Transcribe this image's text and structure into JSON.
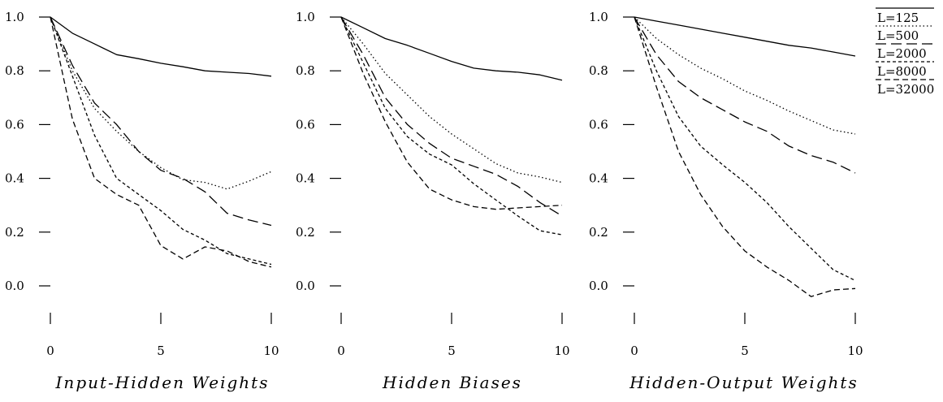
{
  "chart_data": [
    {
      "type": "line",
      "title": "Input-Hidden Weights",
      "xlabel": "",
      "ylabel": "",
      "xlim": [
        0,
        10
      ],
      "ylim": [
        0.0,
        1.0
      ],
      "xticks": [
        "0",
        "5",
        "10"
      ],
      "yticks": [
        "0.0",
        "0.2",
        "0.4",
        "0.6",
        "0.8",
        "1.0"
      ],
      "series": [
        {
          "name": "L=125",
          "x": [
            0,
            1,
            2,
            3,
            4,
            5,
            6,
            7,
            8,
            9,
            10
          ],
          "y": [
            1.0,
            0.94,
            0.9,
            0.86,
            0.845,
            0.828,
            0.815,
            0.8,
            0.795,
            0.79,
            0.78
          ]
        },
        {
          "name": "L=500",
          "x": [
            0,
            1,
            2,
            3,
            4,
            5,
            6,
            7,
            8,
            9,
            10
          ],
          "y": [
            1.0,
            0.8,
            0.66,
            0.575,
            0.5,
            0.44,
            0.395,
            0.385,
            0.36,
            0.39,
            0.425
          ]
        },
        {
          "name": "L=2000",
          "x": [
            0,
            1,
            2,
            3,
            4,
            5,
            6,
            7,
            8,
            9,
            10
          ],
          "y": [
            1.0,
            0.82,
            0.68,
            0.6,
            0.5,
            0.43,
            0.4,
            0.35,
            0.27,
            0.245,
            0.225
          ]
        },
        {
          "name": "L=8000",
          "x": [
            0,
            1,
            2,
            3,
            4,
            5,
            6,
            7,
            8,
            9,
            10
          ],
          "y": [
            1.0,
            0.78,
            0.56,
            0.4,
            0.34,
            0.28,
            0.21,
            0.17,
            0.12,
            0.1,
            0.08
          ]
        },
        {
          "name": "L=32000",
          "x": [
            0,
            1,
            2,
            3,
            4,
            5,
            6,
            7,
            8,
            9,
            10
          ],
          "y": [
            1.0,
            0.62,
            0.4,
            0.34,
            0.3,
            0.15,
            0.1,
            0.145,
            0.13,
            0.09,
            0.07
          ]
        }
      ]
    },
    {
      "type": "line",
      "title": "Hidden Biases",
      "xlabel": "",
      "ylabel": "",
      "xlim": [
        0,
        10
      ],
      "ylim": [
        0.0,
        1.0
      ],
      "xticks": [
        "0",
        "5",
        "10"
      ],
      "yticks": [
        "0.0",
        "0.2",
        "0.4",
        "0.6",
        "0.8",
        "1.0"
      ],
      "series": [
        {
          "name": "L=125",
          "x": [
            0,
            1,
            2,
            3,
            4,
            5,
            6,
            7,
            8,
            9,
            10
          ],
          "y": [
            1.0,
            0.96,
            0.92,
            0.895,
            0.865,
            0.835,
            0.81,
            0.8,
            0.795,
            0.785,
            0.765
          ]
        },
        {
          "name": "L=500",
          "x": [
            0,
            1,
            2,
            3,
            4,
            5,
            6,
            7,
            8,
            9,
            10
          ],
          "y": [
            1.0,
            0.9,
            0.79,
            0.71,
            0.63,
            0.565,
            0.51,
            0.455,
            0.42,
            0.405,
            0.385
          ]
        },
        {
          "name": "L=2000",
          "x": [
            0,
            1,
            2,
            3,
            4,
            5,
            6,
            7,
            8,
            9,
            10
          ],
          "y": [
            1.0,
            0.86,
            0.7,
            0.6,
            0.53,
            0.475,
            0.445,
            0.415,
            0.37,
            0.31,
            0.26
          ]
        },
        {
          "name": "L=8000",
          "x": [
            0,
            1,
            2,
            3,
            4,
            5,
            6,
            7,
            8,
            9,
            10
          ],
          "y": [
            1.0,
            0.83,
            0.66,
            0.555,
            0.49,
            0.45,
            0.38,
            0.32,
            0.26,
            0.205,
            0.19
          ]
        },
        {
          "name": "L=32000",
          "x": [
            0,
            1,
            2,
            3,
            4,
            5,
            6,
            7,
            8,
            9,
            10
          ],
          "y": [
            1.0,
            0.79,
            0.61,
            0.46,
            0.36,
            0.32,
            0.295,
            0.285,
            0.29,
            0.295,
            0.3
          ]
        }
      ]
    },
    {
      "type": "line",
      "title": "Hidden-Output Weights",
      "xlabel": "",
      "ylabel": "",
      "xlim": [
        0,
        10
      ],
      "ylim": [
        0.0,
        1.0
      ],
      "xticks": [
        "0",
        "5",
        "10"
      ],
      "yticks": [
        "0.0",
        "0.2",
        "0.4",
        "0.6",
        "0.8",
        "1.0"
      ],
      "series": [
        {
          "name": "L=125",
          "x": [
            0,
            1,
            2,
            3,
            4,
            5,
            6,
            7,
            8,
            9,
            10
          ],
          "y": [
            1.0,
            0.985,
            0.97,
            0.955,
            0.94,
            0.925,
            0.91,
            0.895,
            0.885,
            0.87,
            0.855
          ]
        },
        {
          "name": "L=500",
          "x": [
            0,
            1,
            2,
            3,
            4,
            5,
            6,
            7,
            8,
            9,
            10
          ],
          "y": [
            1.0,
            0.92,
            0.86,
            0.81,
            0.77,
            0.725,
            0.69,
            0.65,
            0.615,
            0.58,
            0.565
          ]
        },
        {
          "name": "L=2000",
          "x": [
            0,
            1,
            2,
            3,
            4,
            5,
            6,
            7,
            8,
            9,
            10
          ],
          "y": [
            1.0,
            0.86,
            0.76,
            0.7,
            0.655,
            0.61,
            0.575,
            0.52,
            0.485,
            0.46,
            0.42
          ]
        },
        {
          "name": "L=8000",
          "x": [
            0,
            1,
            2,
            3,
            4,
            5,
            6,
            7,
            8,
            9,
            10
          ],
          "y": [
            1.0,
            0.8,
            0.63,
            0.52,
            0.45,
            0.385,
            0.31,
            0.22,
            0.14,
            0.06,
            0.02
          ]
        },
        {
          "name": "L=32000",
          "x": [
            0,
            1,
            2,
            3,
            4,
            5,
            6,
            7,
            8,
            9,
            10
          ],
          "y": [
            1.0,
            0.74,
            0.5,
            0.34,
            0.22,
            0.13,
            0.07,
            0.02,
            -0.04,
            -0.015,
            -0.01
          ]
        }
      ]
    }
  ],
  "legend": {
    "placement": "top-right",
    "entries": [
      {
        "label": "L=125",
        "style": "solid"
      },
      {
        "label": "L=500",
        "style": "dotted"
      },
      {
        "label": "L=2000",
        "style": "long-dash"
      },
      {
        "label": "L=8000",
        "style": "short-dash"
      },
      {
        "label": "L=32000",
        "style": "dash"
      }
    ]
  }
}
